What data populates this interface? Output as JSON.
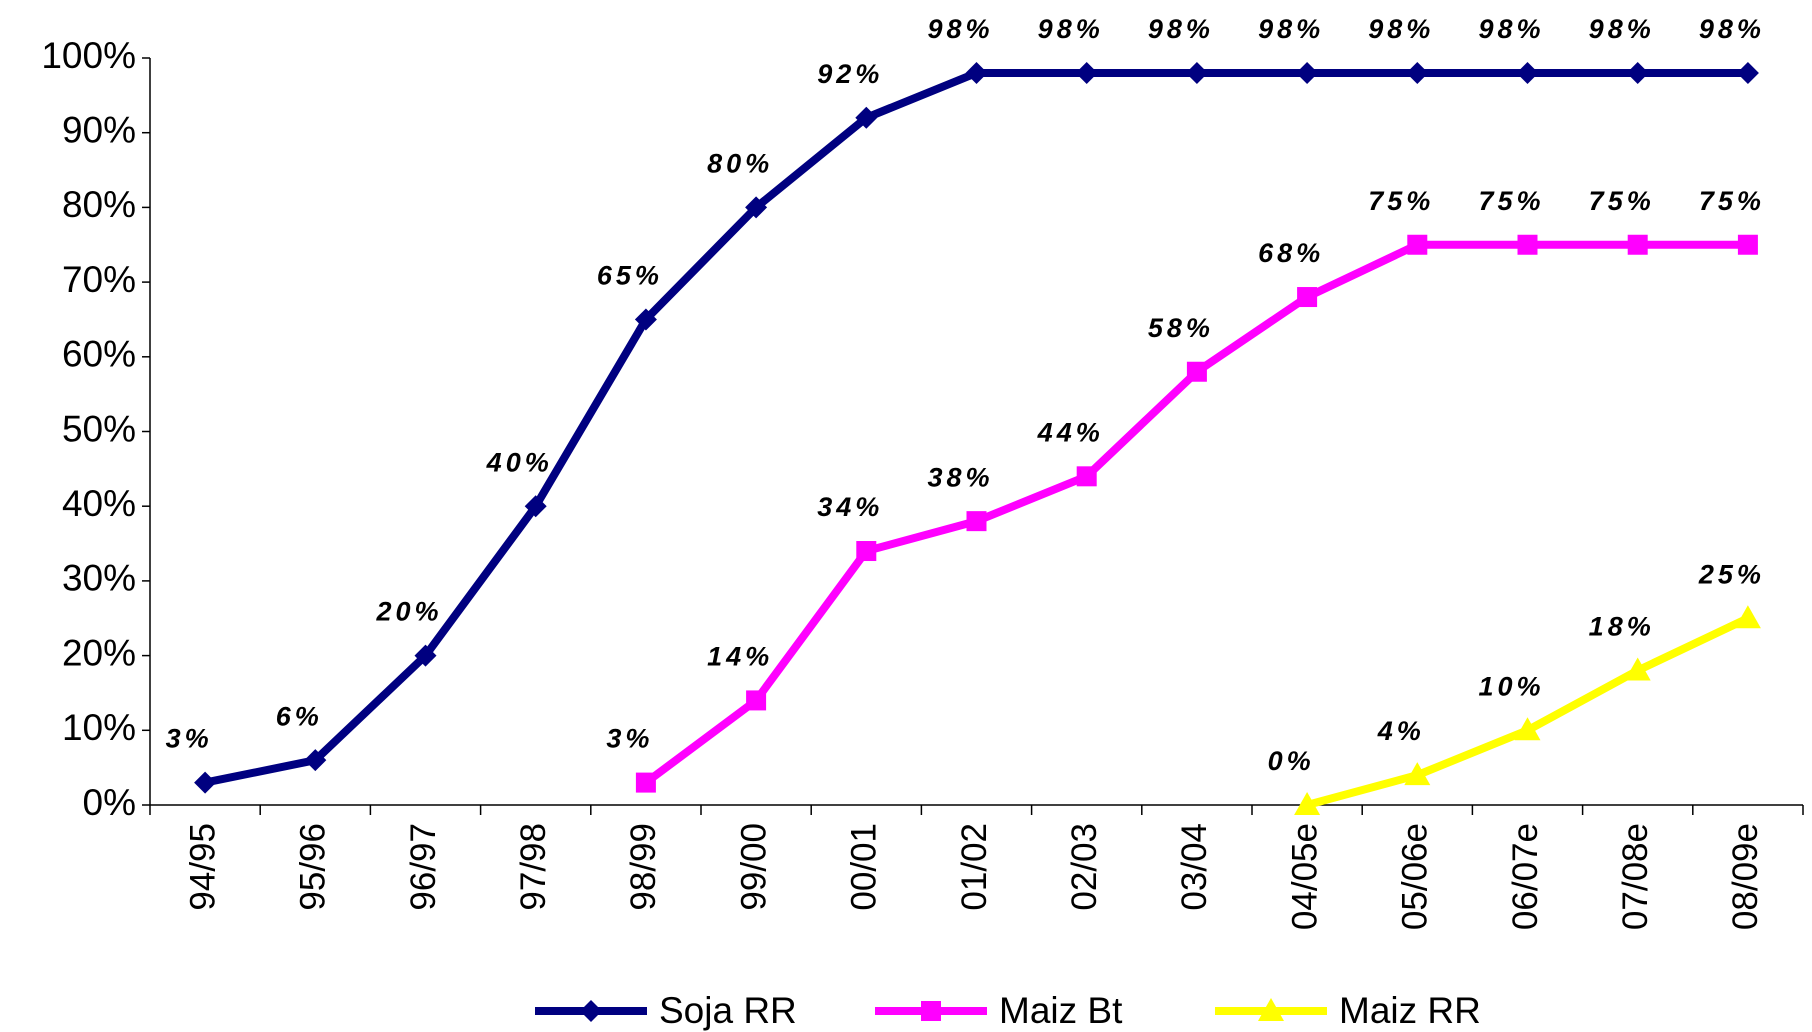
{
  "chart_data": {
    "type": "line",
    "categories": [
      "94/95",
      "95/96",
      "96/97",
      "97/98",
      "98/99",
      "99/00",
      "00/01",
      "01/02",
      "02/03",
      "03/04",
      "04/05e",
      "05/06e",
      "06/07e",
      "07/08e",
      "08/09e"
    ],
    "series": [
      {
        "name": "Soja RR",
        "color": "#000080",
        "marker": "diamond",
        "values": [
          3,
          6,
          20,
          40,
          65,
          80,
          92,
          98,
          98,
          98,
          98,
          98,
          98,
          98,
          98
        ],
        "value_labels": [
          "3%",
          "6%",
          "20%",
          "40%",
          "65%",
          "80%",
          "92%",
          "98%",
          "98%",
          "98%",
          "98%",
          "98%",
          "98%",
          "98%",
          "98%"
        ]
      },
      {
        "name": "Maiz Bt",
        "color": "#ff00ff",
        "marker": "square",
        "values": [
          null,
          null,
          null,
          null,
          3,
          14,
          34,
          38,
          44,
          58,
          68,
          75,
          75,
          75,
          75
        ],
        "value_labels": [
          null,
          null,
          null,
          null,
          "3%",
          "14%",
          "34%",
          "38%",
          "44%",
          "58%",
          "68%",
          "75%",
          "75%",
          "75%",
          "75%"
        ]
      },
      {
        "name": "Maiz RR",
        "color": "#ffff00",
        "marker": "triangle",
        "values": [
          null,
          null,
          null,
          null,
          null,
          null,
          null,
          null,
          null,
          null,
          0,
          4,
          10,
          18,
          25
        ],
        "value_labels": [
          null,
          null,
          null,
          null,
          null,
          null,
          null,
          null,
          null,
          null,
          "0%",
          "4%",
          "10%",
          "18%",
          "25%"
        ]
      }
    ],
    "ylim": [
      0,
      100
    ],
    "yticks": [
      {
        "value": 0,
        "label": "0%"
      },
      {
        "value": 10,
        "label": "10%"
      },
      {
        "value": 20,
        "label": "20%"
      },
      {
        "value": 30,
        "label": "30%"
      },
      {
        "value": 40,
        "label": "40%"
      },
      {
        "value": 50,
        "label": "50%"
      },
      {
        "value": 60,
        "label": "60%"
      },
      {
        "value": 70,
        "label": "70%"
      },
      {
        "value": 80,
        "label": "80%"
      },
      {
        "value": 90,
        "label": "90%"
      },
      {
        "value": 100,
        "label": "100%"
      }
    ],
    "grid": false,
    "legend": "bottom"
  }
}
